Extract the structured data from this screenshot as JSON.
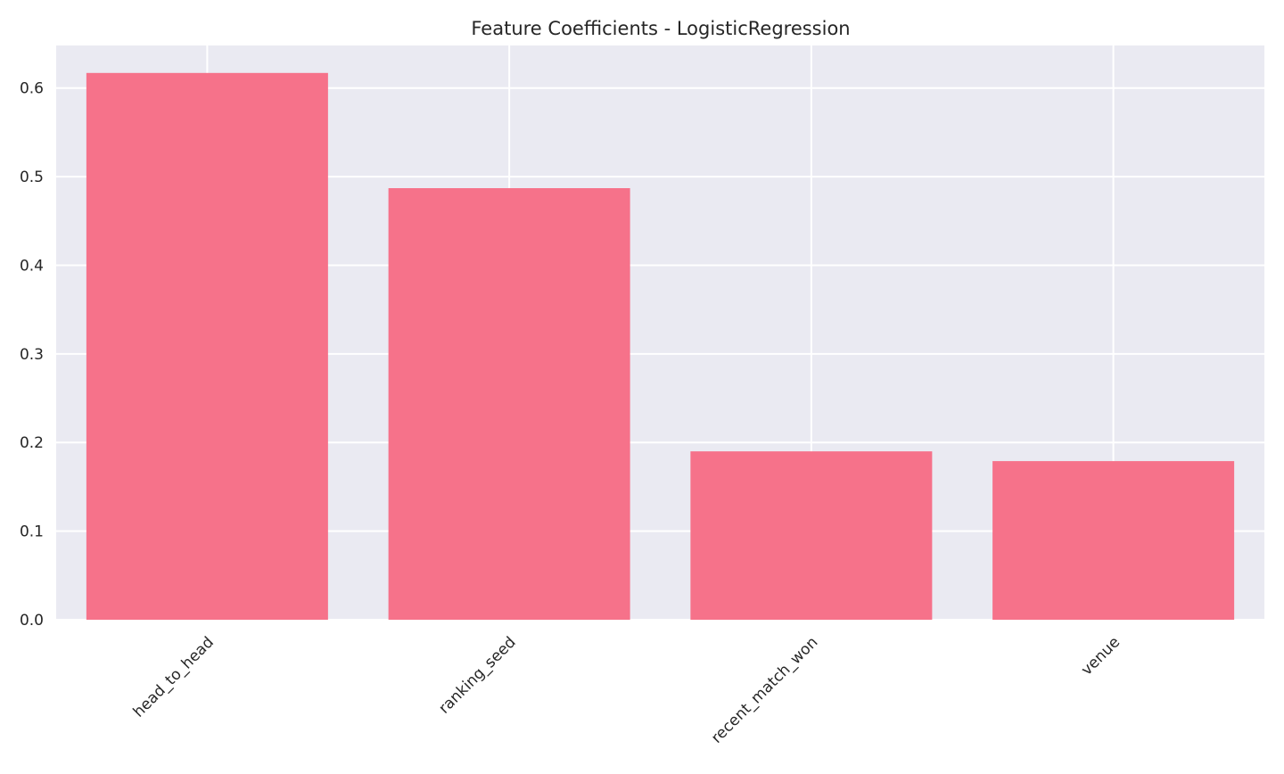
{
  "chart_data": {
    "type": "bar",
    "title": "Feature Coefficients - LogisticRegression",
    "xlabel": "",
    "ylabel": "",
    "categories": [
      "head_to_head",
      "ranking_seed",
      "recent_match_won",
      "venue"
    ],
    "values": [
      0.617,
      0.487,
      0.19,
      0.179
    ],
    "ylim": [
      0,
      0.648
    ],
    "yticks": [
      0.0,
      0.1,
      0.2,
      0.3,
      0.4,
      0.5,
      0.6
    ],
    "ytick_labels": [
      "0.0",
      "0.1",
      "0.2",
      "0.3",
      "0.4",
      "0.5",
      "0.6"
    ],
    "xtick_rotation": 45,
    "grid": true,
    "legend": "none"
  },
  "colors": {
    "bar": "#f6728a",
    "plot_background": "#eaeaf2",
    "grid": "#ffffff",
    "text": "#262626"
  }
}
